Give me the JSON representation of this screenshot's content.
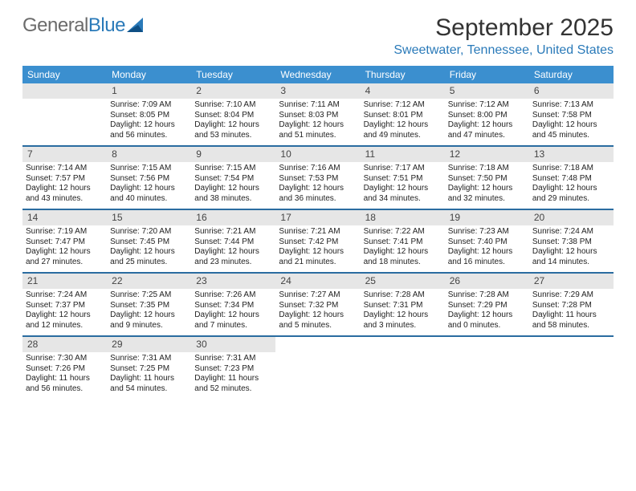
{
  "logo": {
    "text1": "General",
    "text2": "Blue"
  },
  "title": "September 2025",
  "location": "Sweetwater, Tennessee, United States",
  "colors": {
    "header_bg": "#3b8fcf",
    "header_text": "#ffffff",
    "divider": "#2a6ca0",
    "daynum_bg": "#e6e6e6",
    "accent": "#2a7ab9",
    "logo_gray": "#6b6b6b"
  },
  "day_headers": [
    "Sunday",
    "Monday",
    "Tuesday",
    "Wednesday",
    "Thursday",
    "Friday",
    "Saturday"
  ],
  "weeks": [
    [
      {
        "n": "",
        "l1": "",
        "l2": "",
        "l3": ""
      },
      {
        "n": "1",
        "l1": "Sunrise: 7:09 AM",
        "l2": "Sunset: 8:05 PM",
        "l3": "Daylight: 12 hours and 56 minutes."
      },
      {
        "n": "2",
        "l1": "Sunrise: 7:10 AM",
        "l2": "Sunset: 8:04 PM",
        "l3": "Daylight: 12 hours and 53 minutes."
      },
      {
        "n": "3",
        "l1": "Sunrise: 7:11 AM",
        "l2": "Sunset: 8:03 PM",
        "l3": "Daylight: 12 hours and 51 minutes."
      },
      {
        "n": "4",
        "l1": "Sunrise: 7:12 AM",
        "l2": "Sunset: 8:01 PM",
        "l3": "Daylight: 12 hours and 49 minutes."
      },
      {
        "n": "5",
        "l1": "Sunrise: 7:12 AM",
        "l2": "Sunset: 8:00 PM",
        "l3": "Daylight: 12 hours and 47 minutes."
      },
      {
        "n": "6",
        "l1": "Sunrise: 7:13 AM",
        "l2": "Sunset: 7:58 PM",
        "l3": "Daylight: 12 hours and 45 minutes."
      }
    ],
    [
      {
        "n": "7",
        "l1": "Sunrise: 7:14 AM",
        "l2": "Sunset: 7:57 PM",
        "l3": "Daylight: 12 hours and 43 minutes."
      },
      {
        "n": "8",
        "l1": "Sunrise: 7:15 AM",
        "l2": "Sunset: 7:56 PM",
        "l3": "Daylight: 12 hours and 40 minutes."
      },
      {
        "n": "9",
        "l1": "Sunrise: 7:15 AM",
        "l2": "Sunset: 7:54 PM",
        "l3": "Daylight: 12 hours and 38 minutes."
      },
      {
        "n": "10",
        "l1": "Sunrise: 7:16 AM",
        "l2": "Sunset: 7:53 PM",
        "l3": "Daylight: 12 hours and 36 minutes."
      },
      {
        "n": "11",
        "l1": "Sunrise: 7:17 AM",
        "l2": "Sunset: 7:51 PM",
        "l3": "Daylight: 12 hours and 34 minutes."
      },
      {
        "n": "12",
        "l1": "Sunrise: 7:18 AM",
        "l2": "Sunset: 7:50 PM",
        "l3": "Daylight: 12 hours and 32 minutes."
      },
      {
        "n": "13",
        "l1": "Sunrise: 7:18 AM",
        "l2": "Sunset: 7:48 PM",
        "l3": "Daylight: 12 hours and 29 minutes."
      }
    ],
    [
      {
        "n": "14",
        "l1": "Sunrise: 7:19 AM",
        "l2": "Sunset: 7:47 PM",
        "l3": "Daylight: 12 hours and 27 minutes."
      },
      {
        "n": "15",
        "l1": "Sunrise: 7:20 AM",
        "l2": "Sunset: 7:45 PM",
        "l3": "Daylight: 12 hours and 25 minutes."
      },
      {
        "n": "16",
        "l1": "Sunrise: 7:21 AM",
        "l2": "Sunset: 7:44 PM",
        "l3": "Daylight: 12 hours and 23 minutes."
      },
      {
        "n": "17",
        "l1": "Sunrise: 7:21 AM",
        "l2": "Sunset: 7:42 PM",
        "l3": "Daylight: 12 hours and 21 minutes."
      },
      {
        "n": "18",
        "l1": "Sunrise: 7:22 AM",
        "l2": "Sunset: 7:41 PM",
        "l3": "Daylight: 12 hours and 18 minutes."
      },
      {
        "n": "19",
        "l1": "Sunrise: 7:23 AM",
        "l2": "Sunset: 7:40 PM",
        "l3": "Daylight: 12 hours and 16 minutes."
      },
      {
        "n": "20",
        "l1": "Sunrise: 7:24 AM",
        "l2": "Sunset: 7:38 PM",
        "l3": "Daylight: 12 hours and 14 minutes."
      }
    ],
    [
      {
        "n": "21",
        "l1": "Sunrise: 7:24 AM",
        "l2": "Sunset: 7:37 PM",
        "l3": "Daylight: 12 hours and 12 minutes."
      },
      {
        "n": "22",
        "l1": "Sunrise: 7:25 AM",
        "l2": "Sunset: 7:35 PM",
        "l3": "Daylight: 12 hours and 9 minutes."
      },
      {
        "n": "23",
        "l1": "Sunrise: 7:26 AM",
        "l2": "Sunset: 7:34 PM",
        "l3": "Daylight: 12 hours and 7 minutes."
      },
      {
        "n": "24",
        "l1": "Sunrise: 7:27 AM",
        "l2": "Sunset: 7:32 PM",
        "l3": "Daylight: 12 hours and 5 minutes."
      },
      {
        "n": "25",
        "l1": "Sunrise: 7:28 AM",
        "l2": "Sunset: 7:31 PM",
        "l3": "Daylight: 12 hours and 3 minutes."
      },
      {
        "n": "26",
        "l1": "Sunrise: 7:28 AM",
        "l2": "Sunset: 7:29 PM",
        "l3": "Daylight: 12 hours and 0 minutes."
      },
      {
        "n": "27",
        "l1": "Sunrise: 7:29 AM",
        "l2": "Sunset: 7:28 PM",
        "l3": "Daylight: 11 hours and 58 minutes."
      }
    ],
    [
      {
        "n": "28",
        "l1": "Sunrise: 7:30 AM",
        "l2": "Sunset: 7:26 PM",
        "l3": "Daylight: 11 hours and 56 minutes."
      },
      {
        "n": "29",
        "l1": "Sunrise: 7:31 AM",
        "l2": "Sunset: 7:25 PM",
        "l3": "Daylight: 11 hours and 54 minutes."
      },
      {
        "n": "30",
        "l1": "Sunrise: 7:31 AM",
        "l2": "Sunset: 7:23 PM",
        "l3": "Daylight: 11 hours and 52 minutes."
      },
      {
        "n": "",
        "l1": "",
        "l2": "",
        "l3": ""
      },
      {
        "n": "",
        "l1": "",
        "l2": "",
        "l3": ""
      },
      {
        "n": "",
        "l1": "",
        "l2": "",
        "l3": ""
      },
      {
        "n": "",
        "l1": "",
        "l2": "",
        "l3": ""
      }
    ]
  ]
}
